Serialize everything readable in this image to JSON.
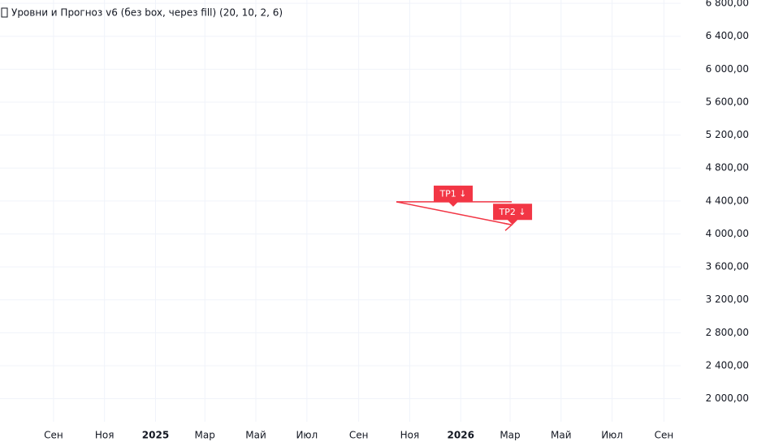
{
  "chart_data": {
    "type": "line",
    "title": "Уровни и Прогноз v6 (без box, через fill) (20, 10, 2, 6)",
    "xlim": [
      "2024-06-29",
      "2026-09-21"
    ],
    "xticks": [
      {
        "value": "2024-09-01",
        "label": "Сен"
      },
      {
        "value": "2024-11-01",
        "label": "Ноя"
      },
      {
        "value": "2025-01-01",
        "label": "2025"
      },
      {
        "value": "2025-03-01",
        "label": "Мар"
      },
      {
        "value": "2025-05-01",
        "label": "Май"
      },
      {
        "value": "2025-07-01",
        "label": "Июл"
      },
      {
        "value": "2025-09-01",
        "label": "Сен"
      },
      {
        "value": "2025-11-01",
        "label": "Ноя"
      },
      {
        "value": "2026-01-01",
        "label": "2026"
      },
      {
        "value": "2026-03-01",
        "label": "Мар"
      },
      {
        "value": "2026-05-01",
        "label": "Май"
      },
      {
        "value": "2026-07-01",
        "label": "Июл"
      },
      {
        "value": "2026-09-01",
        "label": "Сен"
      }
    ],
    "ylim": [
      1720,
      6840
    ],
    "yticks": [
      {
        "value": 2000,
        "label": "2 000,00"
      },
      {
        "value": 2400,
        "label": "2 400,00"
      },
      {
        "value": 2800,
        "label": "2 800,00"
      },
      {
        "value": 3200,
        "label": "3 200,00"
      },
      {
        "value": 3600,
        "label": "3 600,00"
      },
      {
        "value": 4000,
        "label": "4 000,00"
      },
      {
        "value": 4400,
        "label": "4 400,00"
      },
      {
        "value": 4800,
        "label": "4 800,00"
      },
      {
        "value": 5200,
        "label": "5 200,00"
      },
      {
        "value": 5600,
        "label": "5 600,00"
      },
      {
        "value": 6000,
        "label": "6 000,00"
      },
      {
        "value": 6400,
        "label": "6 400,00"
      },
      {
        "value": 6800,
        "label": "6 800,00"
      }
    ],
    "grid": true,
    "series": [
      {
        "color": "#f23645",
        "x": [
          "2025-10-16",
          "2026-03-03"
        ],
        "values": [
          4390,
          4390
        ]
      },
      {
        "color": "#f23645",
        "x": [
          "2025-10-16",
          "2026-03-03"
        ],
        "values": [
          4390,
          4110
        ]
      }
    ],
    "annotations": [
      {
        "text": "TP1 ↓",
        "x": "2025-12-23",
        "y": 4330,
        "color": "#f23645"
      },
      {
        "text": "TP2 ↓",
        "x": "2026-03-04",
        "y": 4110,
        "color": "#f23645"
      }
    ]
  }
}
